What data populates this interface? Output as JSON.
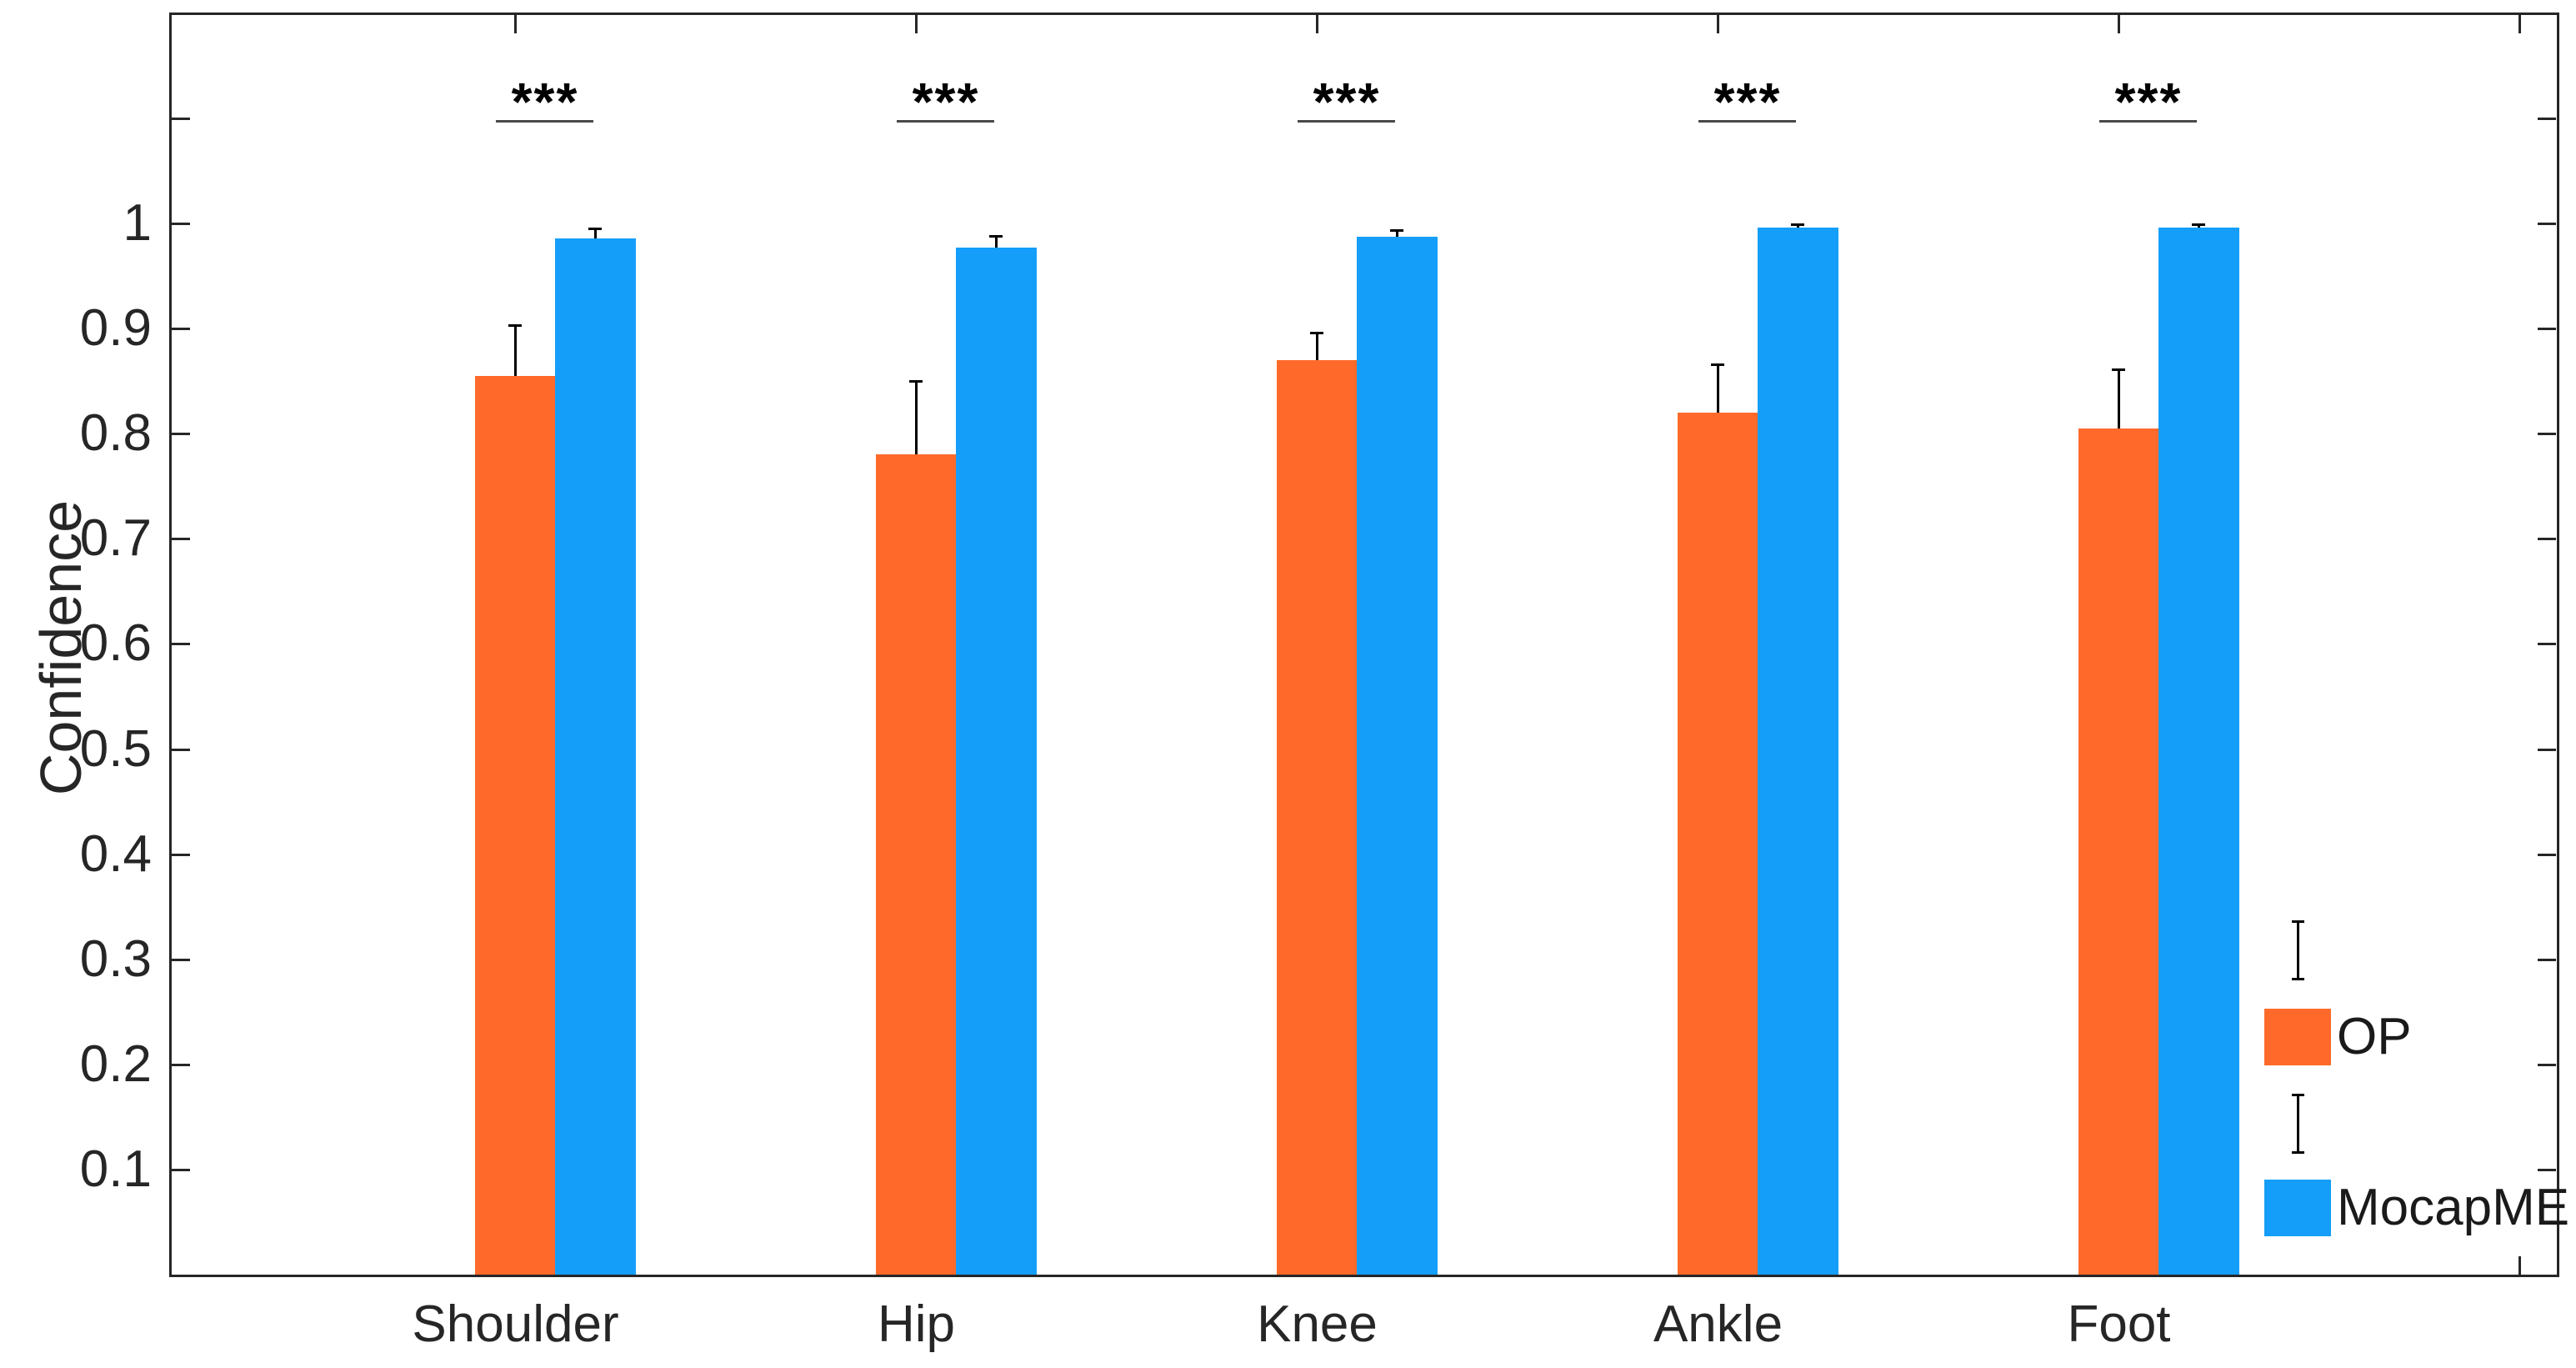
{
  "chart_data": {
    "type": "bar",
    "title": "",
    "ylabel": "Confidence",
    "xlabel": "",
    "categories": [
      "Shoulder",
      "Hip",
      "Knee",
      "Ankle",
      "Foot"
    ],
    "series": [
      {
        "name": "OP",
        "color": "#FF6A2A",
        "values": [
          0.855,
          0.78,
          0.87,
          0.82,
          0.805
        ],
        "errors_plus": [
          0.048,
          0.07,
          0.026,
          0.046,
          0.056
        ]
      },
      {
        "name": "MocapME",
        "color": "#149EF9",
        "values": [
          0.986,
          0.977,
          0.987,
          0.996,
          0.996
        ],
        "errors_plus": [
          0.009,
          0.011,
          0.007,
          0.003,
          0.003
        ]
      }
    ],
    "significance": [
      "***",
      "***",
      "***",
      "***",
      "***"
    ],
    "ylim": [
      0,
      1.2
    ],
    "yticks": [
      0.1,
      0.2,
      0.3,
      0.4,
      0.5,
      0.6,
      0.7,
      0.8,
      0.9,
      1.0,
      1.1
    ],
    "ytick_labels": [
      "0.1",
      "0.2",
      "0.3",
      "0.4",
      "0.5",
      "0.6",
      "0.7",
      "0.8",
      "0.9",
      "1",
      ""
    ],
    "grid": false,
    "box": "on",
    "tick_direction": "in",
    "error_bar_color": "#000000",
    "axis_color": "#262626",
    "legend_position": "inside-right-bottom"
  },
  "legend": {
    "entries": [
      {
        "icon": "errorbar-icon",
        "label": ""
      },
      {
        "icon": "color-swatch",
        "series": "OP",
        "label": "OP"
      },
      {
        "icon": "errorbar-icon",
        "label": ""
      },
      {
        "icon": "color-swatch",
        "series": "MocapME",
        "label": "MocapME"
      }
    ]
  }
}
